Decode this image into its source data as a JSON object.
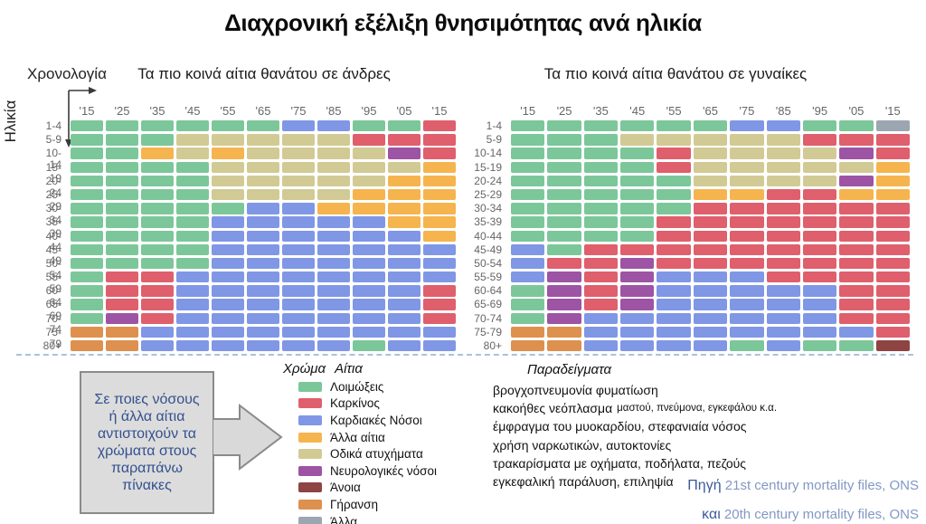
{
  "title": "Διαχρονική εξέλιξη θνησιμότητας ανά ηλικία",
  "axes": {
    "x_label": "Χρονολογία",
    "y_label": "Ηλικία"
  },
  "colors": {
    "G": "#7cc79a",
    "R": "#df5f6d",
    "B": "#8097e6",
    "O": "#f6b44e",
    "T": "#d2ca94",
    "P": "#9d54a4",
    "M": "#8e4442",
    "D": "#de904e",
    "X": "#9ba6b1"
  },
  "ui_colors": {
    "callout_text": "#33518f",
    "source_label": "#3c5a99",
    "source_text": "#8398c5",
    "dashed_line": "#a9c3de"
  },
  "chart_data": [
    {
      "type": "heatmap",
      "title": "Τα πιο κοινά αίτια θανάτου σε άνδρες",
      "x": [
        "'15",
        "'25",
        "'35",
        "'45",
        "'55",
        "'65",
        "'75",
        "'85",
        "'95",
        "'05",
        "'15"
      ],
      "y": [
        "1-4",
        "5-9",
        "10-14",
        "15-19",
        "20-24",
        "25-29",
        "30-34",
        "35-39",
        "40-44",
        "45-49",
        "50-54",
        "55-59",
        "60-64",
        "65-69",
        "70-74",
        "75-79",
        "80+"
      ],
      "rows": [
        "GGGGGGBBGGR",
        "GGGTTTTTRRR",
        "GGOTOTTTTPR",
        "GGGGTTTTTTO",
        "GGGGTTTTTOO",
        "GGGGTTTTOOO",
        "GGGGGBBOOOO",
        "GGGGBBBBBOO",
        "GGGGBBBBBBO",
        "GGGGBBBBBBB",
        "GGGGBBBBBBB",
        "GRRBBBBBBBB",
        "GRRBBBBBBBR",
        "GRRBBBBBBBR",
        "GPRBBBBBBBR",
        "DDBBBBBBBBB",
        "DDBBBBBBGBB"
      ]
    },
    {
      "type": "heatmap",
      "title": "Τα πιο κοινά αίτια θανάτου σε γυναίκες",
      "x": [
        "'15",
        "'25",
        "'35",
        "'45",
        "'55",
        "'65",
        "'75",
        "'85",
        "'95",
        "'05",
        "'15"
      ],
      "y": [
        "1-4",
        "5-9",
        "10-14",
        "15-19",
        "20-24",
        "25-29",
        "30-34",
        "35-39",
        "40-44",
        "45-49",
        "50-54",
        "55-59",
        "60-64",
        "65-69",
        "70-74",
        "75-79",
        "80+"
      ],
      "rows": [
        "GGGGGGBBGGX",
        "GGGTTTTTRRR",
        "GGGGRTTTTPR",
        "GGGGRTTTTTO",
        "GGGGGTTTTPO",
        "GGGGGOORROO",
        "GGGGGRRRRRR",
        "GGGGRRRRRRR",
        "GGGGRRRRRRR",
        "BGRRRRRRRRR",
        "BRRPRRRRRRR",
        "BPRPBBBRRRR",
        "GPRPBBBBBRR",
        "GPRPBBBBBRR",
        "GPBBBBBBBRR",
        "DDBBBBBBBBR",
        "DDBBBBGBGGM"
      ]
    }
  ],
  "legend": {
    "header_color": "Χρώμα",
    "header_cause": "Αίτια",
    "header_examples": "Παραδείγματα",
    "items": [
      {
        "key": "G",
        "label": "Λοιμώξεις",
        "example": "βρογχοπνευμονία φυματίωση",
        "example_small": ""
      },
      {
        "key": "R",
        "label": "Καρκίνος",
        "example": "κακοήθες νεόπλασμα",
        "example_small": "μαστού, πνεύμονα, εγκεφάλου κ.α."
      },
      {
        "key": "B",
        "label": "Καρδιακές Νόσοι",
        "example": "έμφραγμα του μυοκαρδίου, στεφανιαία νόσος",
        "example_small": ""
      },
      {
        "key": "O",
        "label": "Άλλα αίτια",
        "example": "χρήση ναρκωτικών, αυτοκτονίες",
        "example_small": ""
      },
      {
        "key": "T",
        "label": "Οδικά ατυχήματα",
        "example": "τρακαρίσματα με οχήματα, ποδήλατα, πεζούς",
        "example_small": ""
      },
      {
        "key": "P",
        "label": "Νευρολογικές νόσοι",
        "example": "εγκεφαλική παράλυση, επιληψία",
        "example_small": ""
      },
      {
        "key": "M",
        "label": "Άνοια",
        "example": "",
        "example_small": ""
      },
      {
        "key": "D",
        "label": "Γήρανση",
        "example": "",
        "example_small": ""
      },
      {
        "key": "X",
        "label": "Άλλα",
        "example": "",
        "example_small": ""
      }
    ]
  },
  "callout": {
    "text": "Σε ποιες νόσους ή άλλα αίτια αντιστοιχούν τα χρώματα στους παραπάνω πίνακες"
  },
  "source": {
    "label1": "Πηγή",
    "text1": "21st century mortality files, ONS",
    "label2": "και",
    "text2": "20th century mortality files, ONS"
  }
}
